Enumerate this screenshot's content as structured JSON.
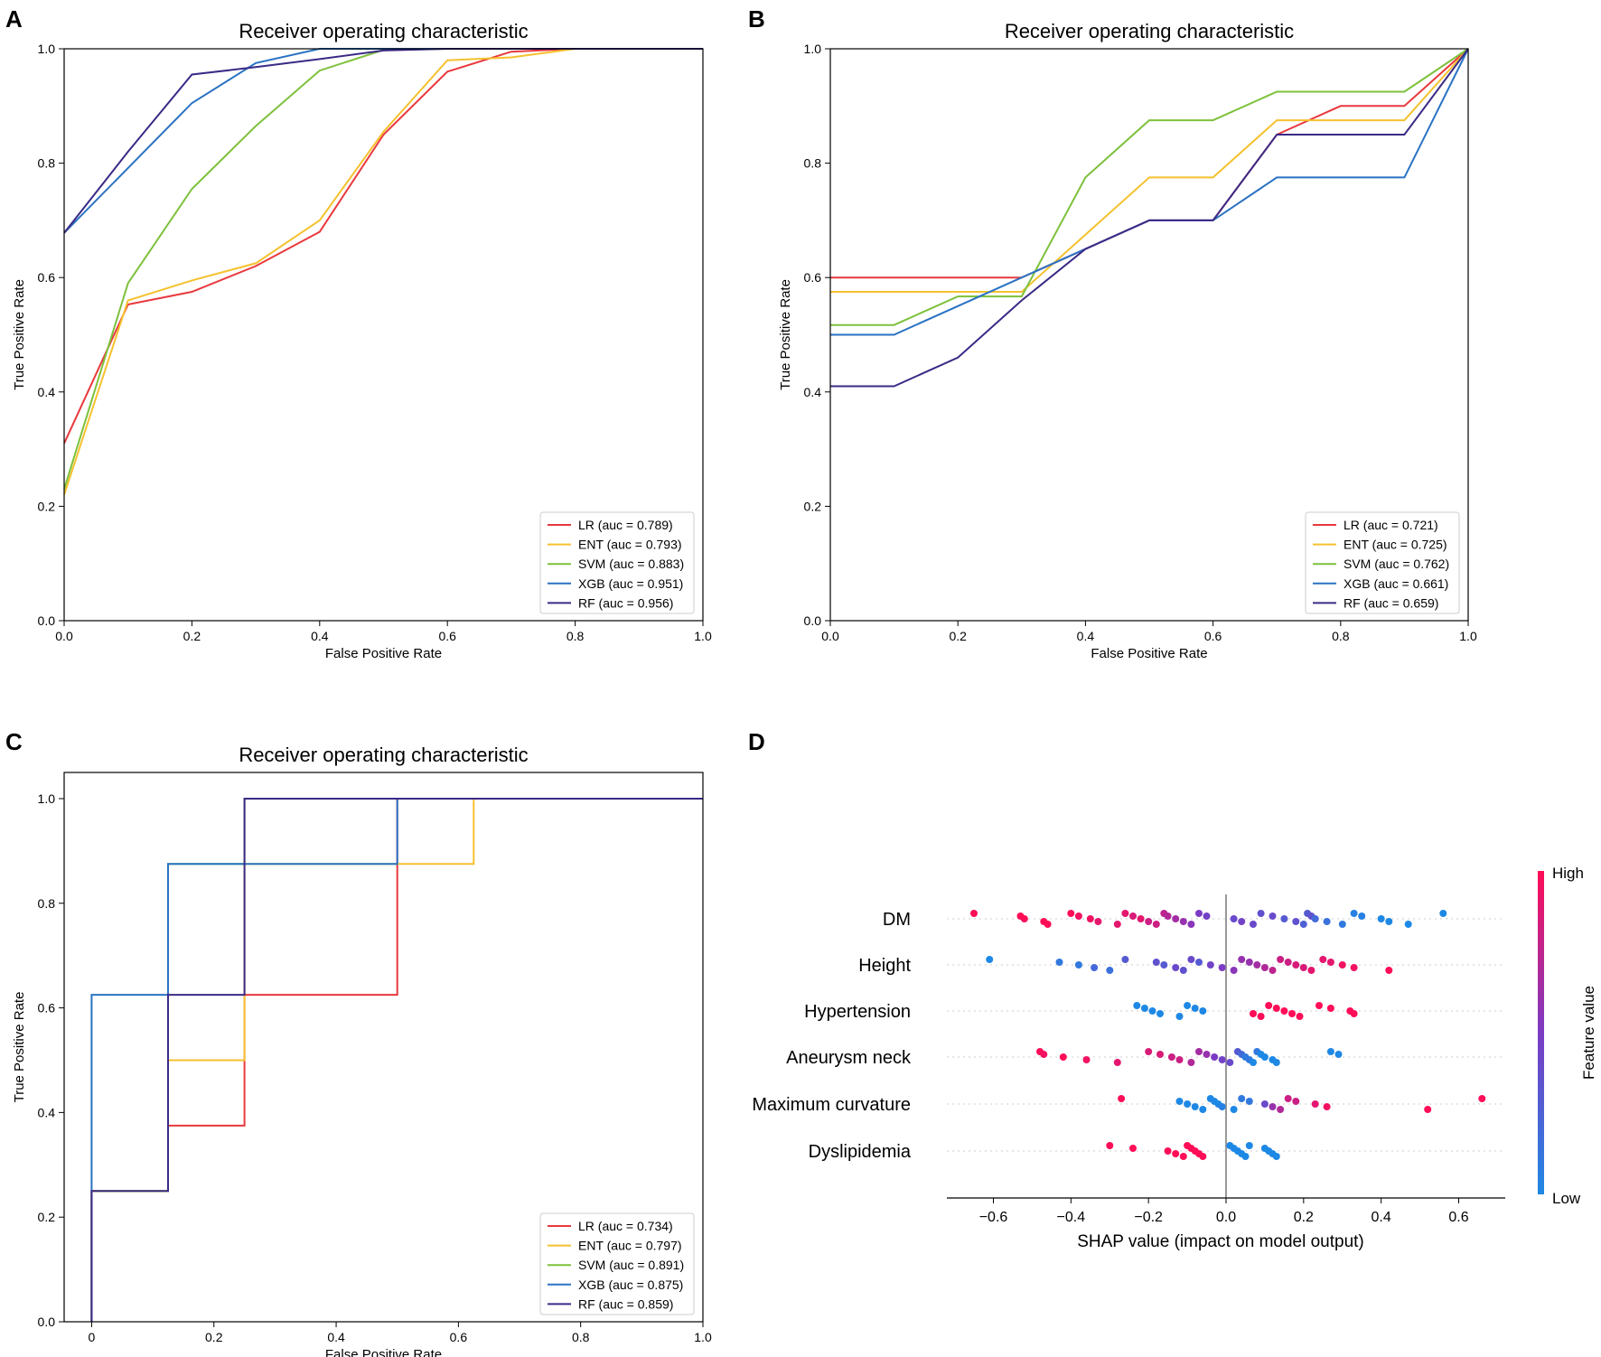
{
  "chart_data": [
    {
      "panel": "A",
      "type": "line",
      "title": "Receiver operating characteristic",
      "xlabel": "False Positive Rate",
      "ylabel": "True Positive Rate",
      "xlim": [
        0,
        1
      ],
      "ylim": [
        0,
        1
      ],
      "xticks": [
        "0.0",
        "0.2",
        "0.4",
        "0.6",
        "0.8",
        "1.0"
      ],
      "yticks": [
        "0.0",
        "0.2",
        "0.4",
        "0.6",
        "0.8",
        "1.0"
      ],
      "legend_position": "lower-right",
      "series": [
        {
          "name": "LR (auc = 0.789)",
          "color": "#e8383d",
          "x": [
            0,
            0.1,
            0.2,
            0.3,
            0.4,
            0.5,
            0.6,
            0.7,
            0.8,
            1.0
          ],
          "y": [
            0.31,
            0.553,
            0.575,
            0.62,
            0.68,
            0.85,
            0.96,
            0.995,
            1,
            1
          ]
        },
        {
          "name": "ENT (auc = 0.793)",
          "color": "#f5c12e",
          "x": [
            0,
            0.1,
            0.2,
            0.3,
            0.4,
            0.5,
            0.6,
            0.7,
            0.8,
            1.0
          ],
          "y": [
            0.22,
            0.56,
            0.595,
            0.625,
            0.7,
            0.855,
            0.98,
            0.985,
            1,
            1
          ]
        },
        {
          "name": "SVM (auc = 0.883)",
          "color": "#7dc13b",
          "x": [
            0,
            0.1,
            0.2,
            0.3,
            0.4,
            0.5,
            0.6,
            0.8,
            1.0
          ],
          "y": [
            0.23,
            0.59,
            0.755,
            0.865,
            0.962,
            0.998,
            1,
            1,
            1
          ]
        },
        {
          "name": "XGB (auc = 0.951)",
          "color": "#2a72c3",
          "x": [
            0,
            0.2,
            0.3,
            0.4,
            0.5,
            1.0
          ],
          "y": [
            0.678,
            0.905,
            0.975,
            1,
            1,
            1
          ]
        },
        {
          "name": "RF (auc = 0.956)",
          "color": "#3b2a86",
          "x": [
            0,
            0.1,
            0.2,
            0.3,
            0.4,
            0.5,
            0.6,
            1.0
          ],
          "y": [
            0.678,
            0.82,
            0.955,
            0.968,
            0.982,
            0.997,
            1,
            1
          ]
        }
      ]
    },
    {
      "panel": "B",
      "type": "line",
      "title": "Receiver operating characteristic",
      "xlabel": "False Positive Rate",
      "ylabel": "True Positive Rate",
      "xlim": [
        0,
        1
      ],
      "ylim": [
        0,
        1
      ],
      "xticks": [
        "0.0",
        "0.2",
        "0.4",
        "0.6",
        "0.8",
        "1.0"
      ],
      "yticks": [
        "0.0",
        "0.2",
        "0.4",
        "0.6",
        "0.8",
        "1.0"
      ],
      "legend_position": "lower-right",
      "series": [
        {
          "name": "LR (auc = 0.721)",
          "color": "#e8383d",
          "x": [
            0,
            0.3,
            0.4,
            0.5,
            0.6,
            0.7,
            0.8,
            0.9,
            1.0
          ],
          "y": [
            0.6,
            0.6,
            0.65,
            0.7,
            0.7,
            0.85,
            0.9,
            0.9,
            1
          ]
        },
        {
          "name": "ENT (auc = 0.725)",
          "color": "#f5c12e",
          "x": [
            0,
            0.3,
            0.4,
            0.5,
            0.6,
            0.7,
            0.8,
            0.9,
            1.0
          ],
          "y": [
            0.575,
            0.575,
            0.675,
            0.775,
            0.775,
            0.875,
            0.875,
            0.875,
            1
          ]
        },
        {
          "name": "SVM (auc = 0.762)",
          "color": "#7dc13b",
          "x": [
            0,
            0.1,
            0.2,
            0.3,
            0.4,
            0.5,
            0.6,
            0.7,
            0.8,
            0.9,
            1.0
          ],
          "y": [
            0.517,
            0.517,
            0.567,
            0.567,
            0.775,
            0.875,
            0.875,
            0.925,
            0.925,
            0.925,
            1
          ]
        },
        {
          "name": "XGB (auc = 0.661)",
          "color": "#2a72c3",
          "x": [
            0,
            0.1,
            0.2,
            0.3,
            0.4,
            0.5,
            0.6,
            0.7,
            0.8,
            0.9,
            1.0
          ],
          "y": [
            0.5,
            0.5,
            0.55,
            0.6,
            0.65,
            0.7,
            0.7,
            0.775,
            0.775,
            0.775,
            1
          ]
        },
        {
          "name": "RF (auc = 0.659)",
          "color": "#3b2a86",
          "x": [
            0,
            0.1,
            0.2,
            0.3,
            0.4,
            0.5,
            0.6,
            0.7,
            0.8,
            0.9,
            1.0
          ],
          "y": [
            0.41,
            0.41,
            0.46,
            0.56,
            0.65,
            0.7,
            0.7,
            0.85,
            0.85,
            0.85,
            1
          ]
        }
      ]
    },
    {
      "panel": "C",
      "type": "line",
      "title": "Receiver operating characteristic",
      "xlabel": "False Positive Rate",
      "ylabel": "True Positive Rate",
      "xlim": [
        -0.045,
        1
      ],
      "ylim": [
        0,
        1.05
      ],
      "xticks": [
        "0",
        "0.2",
        "0.4",
        "0.6",
        "0.8",
        "1.0"
      ],
      "yticks": [
        "0.0",
        "0.2",
        "0.4",
        "0.6",
        "0.8",
        "1.0"
      ],
      "legend_position": "lower-right",
      "series": [
        {
          "name": "LR (auc = 0.734)",
          "color": "#e8383d",
          "x": [
            0,
            0,
            0.125,
            0.125,
            0.25,
            0.25,
            0.5,
            0.5,
            1.0
          ],
          "y": [
            0,
            0.25,
            0.25,
            0.375,
            0.375,
            0.625,
            0.625,
            1,
            1
          ]
        },
        {
          "name": "ENT (auc = 0.797)",
          "color": "#f5c12e",
          "x": [
            0,
            0,
            0.125,
            0.125,
            0.25,
            0.25,
            0.625,
            0.625,
            1.0
          ],
          "y": [
            0,
            0.25,
            0.25,
            0.5,
            0.5,
            0.875,
            0.875,
            1,
            1
          ]
        },
        {
          "name": "SVM (auc = 0.891)",
          "color": "#7dc13b",
          "x": [
            0,
            0,
            0.125,
            0.125,
            0.25,
            0.25,
            1.0
          ],
          "y": [
            0,
            0.25,
            0.25,
            0.875,
            0.875,
            1,
            1
          ]
        },
        {
          "name": "XGB (auc = 0.875)",
          "color": "#2a72c3",
          "x": [
            0,
            0,
            0.125,
            0.125,
            0.5,
            0.5,
            1.0
          ],
          "y": [
            0,
            0.625,
            0.625,
            0.875,
            0.875,
            1,
            1
          ]
        },
        {
          "name": "RF (auc = 0.859)",
          "color": "#3b2a86",
          "x": [
            0,
            0,
            0.125,
            0.125,
            0.25,
            0.25,
            1.0
          ],
          "y": [
            0,
            0.25,
            0.25,
            0.625,
            0.625,
            1,
            1
          ]
        }
      ]
    },
    {
      "panel": "D",
      "type": "scatter",
      "subtype": "shap-beeswarm",
      "xlabel": "SHAP value (impact on model output)",
      "xlim": [
        -0.72,
        0.72
      ],
      "xticks": [
        "−0.6",
        "−0.4",
        "−0.2",
        "0.0",
        "0.2",
        "0.4",
        "0.6"
      ],
      "features": [
        "DM",
        "Height",
        "Hypertension",
        "Aneurysm neck",
        "Maximum curvature",
        "Dyslipidemia"
      ],
      "colorbar": {
        "label": "Feature value",
        "high": "High",
        "low": "Low",
        "low_color": "#1e88e5",
        "mid_color": "#7c3bc4",
        "high_color": "#ff0d57"
      },
      "points": [
        [
          [
            -0.65,
            1
          ],
          [
            -0.53,
            1
          ],
          [
            -0.52,
            1
          ],
          [
            -0.47,
            1
          ],
          [
            -0.46,
            1
          ],
          [
            -0.4,
            1
          ],
          [
            -0.38,
            0.95
          ],
          [
            -0.35,
            0.95
          ],
          [
            -0.33,
            0.9
          ],
          [
            -0.28,
            0.9
          ],
          [
            -0.26,
            0.9
          ],
          [
            -0.24,
            0.85
          ],
          [
            -0.22,
            0.9
          ],
          [
            -0.2,
            0.8
          ],
          [
            -0.18,
            0.8
          ],
          [
            -0.16,
            0.75
          ],
          [
            -0.15,
            0.7
          ],
          [
            -0.13,
            0.65
          ],
          [
            -0.11,
            0.6
          ],
          [
            -0.09,
            0.55
          ],
          [
            -0.07,
            0.5
          ],
          [
            -0.05,
            0.45
          ],
          [
            0.02,
            0.4
          ],
          [
            0.04,
            0.45
          ],
          [
            0.07,
            0.4
          ],
          [
            0.09,
            0.35
          ],
          [
            0.12,
            0.4
          ],
          [
            0.15,
            0.3
          ],
          [
            0.18,
            0.35
          ],
          [
            0.2,
            0.25
          ],
          [
            0.21,
            0.3
          ],
          [
            0.22,
            0.35
          ],
          [
            0.23,
            0.2
          ],
          [
            0.26,
            0.15
          ],
          [
            0.3,
            0.1
          ],
          [
            0.33,
            0.05
          ],
          [
            0.35,
            0.05
          ],
          [
            0.4,
            0.0
          ],
          [
            0.42,
            0.0
          ],
          [
            0.47,
            0.0
          ],
          [
            0.56,
            0.0
          ]
        ],
        [
          [
            -0.61,
            0.0
          ],
          [
            -0.43,
            0.1
          ],
          [
            -0.38,
            0.1
          ],
          [
            -0.34,
            0.2
          ],
          [
            -0.3,
            0.15
          ],
          [
            -0.26,
            0.3
          ],
          [
            -0.18,
            0.35
          ],
          [
            -0.16,
            0.3
          ],
          [
            -0.13,
            0.4
          ],
          [
            -0.11,
            0.35
          ],
          [
            -0.09,
            0.4
          ],
          [
            -0.07,
            0.3
          ],
          [
            -0.04,
            0.45
          ],
          [
            -0.01,
            0.5
          ],
          [
            0.02,
            0.55
          ],
          [
            0.04,
            0.6
          ],
          [
            0.06,
            0.6
          ],
          [
            0.08,
            0.65
          ],
          [
            0.1,
            0.7
          ],
          [
            0.12,
            0.75
          ],
          [
            0.14,
            0.8
          ],
          [
            0.16,
            0.8
          ],
          [
            0.18,
            0.85
          ],
          [
            0.2,
            0.85
          ],
          [
            0.22,
            0.9
          ],
          [
            0.25,
            0.9
          ],
          [
            0.27,
            0.9
          ],
          [
            0.3,
            0.95
          ],
          [
            0.33,
            0.95
          ],
          [
            0.42,
            1.0
          ]
        ],
        [
          [
            -0.23,
            0.0
          ],
          [
            -0.21,
            0.0
          ],
          [
            -0.19,
            0.0
          ],
          [
            -0.17,
            0.0
          ],
          [
            -0.12,
            0.0
          ],
          [
            -0.1,
            0.0
          ],
          [
            -0.08,
            0.0
          ],
          [
            -0.06,
            0.0
          ],
          [
            0.07,
            1.0
          ],
          [
            0.09,
            1.0
          ],
          [
            0.11,
            1.0
          ],
          [
            0.13,
            1.0
          ],
          [
            0.15,
            1.0
          ],
          [
            0.17,
            1.0
          ],
          [
            0.19,
            1.0
          ],
          [
            0.24,
            1.0
          ],
          [
            0.27,
            1.0
          ],
          [
            0.32,
            1.0
          ],
          [
            0.33,
            1.0
          ]
        ],
        [
          [
            -0.48,
            1.0
          ],
          [
            -0.47,
            0.95
          ],
          [
            -0.42,
            1.0
          ],
          [
            -0.36,
            0.95
          ],
          [
            -0.28,
            0.9
          ],
          [
            -0.2,
            0.85
          ],
          [
            -0.17,
            0.85
          ],
          [
            -0.14,
            0.8
          ],
          [
            -0.12,
            0.8
          ],
          [
            -0.09,
            0.7
          ],
          [
            -0.07,
            0.65
          ],
          [
            -0.05,
            0.6
          ],
          [
            -0.03,
            0.5
          ],
          [
            -0.01,
            0.45
          ],
          [
            0.01,
            0.4
          ],
          [
            0.03,
            0.3
          ],
          [
            0.04,
            0.2
          ],
          [
            0.05,
            0.1
          ],
          [
            0.06,
            0.1
          ],
          [
            0.07,
            0.0
          ],
          [
            0.08,
            0.1
          ],
          [
            0.09,
            0.0
          ],
          [
            0.1,
            0.0
          ],
          [
            0.12,
            0.0
          ],
          [
            0.13,
            0.0
          ],
          [
            0.27,
            0.0
          ],
          [
            0.29,
            0.0
          ]
        ],
        [
          [
            -0.27,
            1.0
          ],
          [
            -0.12,
            0.0
          ],
          [
            -0.1,
            0.0
          ],
          [
            -0.08,
            0.0
          ],
          [
            -0.06,
            0.0
          ],
          [
            -0.04,
            0.0
          ],
          [
            -0.03,
            0.0
          ],
          [
            -0.02,
            0.0
          ],
          [
            -0.01,
            0.05
          ],
          [
            0.02,
            0.0
          ],
          [
            0.04,
            0.1
          ],
          [
            0.06,
            0.1
          ],
          [
            0.1,
            0.4
          ],
          [
            0.12,
            0.6
          ],
          [
            0.14,
            0.7
          ],
          [
            0.16,
            0.8
          ],
          [
            0.18,
            0.8
          ],
          [
            0.23,
            0.9
          ],
          [
            0.26,
            0.95
          ],
          [
            0.52,
            1.0
          ],
          [
            0.66,
            1.0
          ]
        ],
        [
          [
            -0.3,
            1.0
          ],
          [
            -0.24,
            1.0
          ],
          [
            -0.15,
            1.0
          ],
          [
            -0.13,
            1.0
          ],
          [
            -0.11,
            1.0
          ],
          [
            -0.1,
            1.0
          ],
          [
            -0.09,
            1.0
          ],
          [
            -0.08,
            1.0
          ],
          [
            -0.07,
            1.0
          ],
          [
            -0.06,
            1.0
          ],
          [
            0.01,
            0.0
          ],
          [
            0.02,
            0.0
          ],
          [
            0.03,
            0.0
          ],
          [
            0.04,
            0.0
          ],
          [
            0.05,
            0.0
          ],
          [
            0.06,
            0.0
          ],
          [
            0.1,
            0.0
          ],
          [
            0.11,
            0.0
          ],
          [
            0.12,
            0.0
          ],
          [
            0.13,
            0.0
          ]
        ]
      ]
    }
  ]
}
